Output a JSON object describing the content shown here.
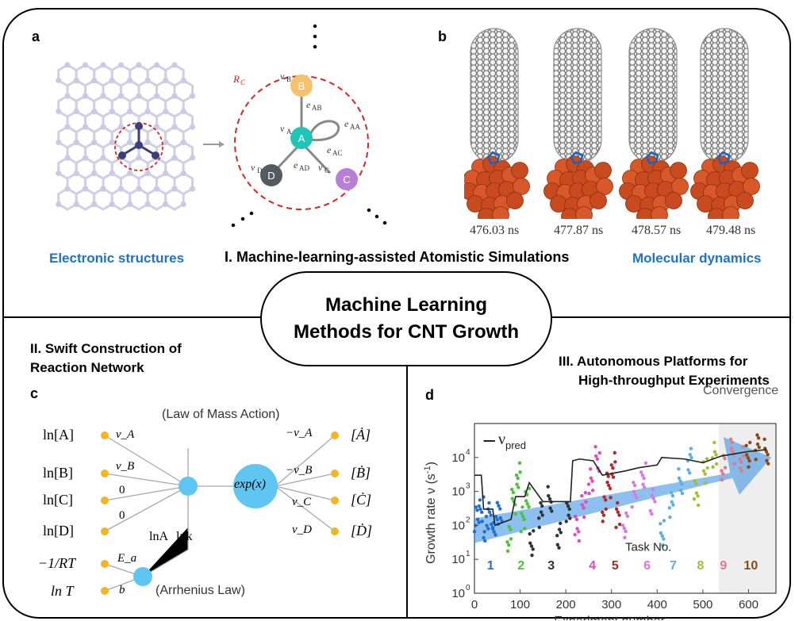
{
  "center": {
    "line1": "Machine Learning",
    "line2": "Methods for CNT Growth"
  },
  "sections": {
    "s1": "I. Machine-learning-assisted Atomistic Simulations",
    "s2_l1": "II. Swift Construction of",
    "s2_l2": "Reaction Network",
    "s3_l1": "III. Autonomous Platforms for",
    "s3_l2": "High-throughput Experiments"
  },
  "panel_a": {
    "letter": "a",
    "label": "Electronic structures",
    "rc": "R",
    "rc_sub": "C",
    "nodes": [
      {
        "id": "B",
        "v": "v",
        "sub": "B",
        "color": "#f5c26b"
      },
      {
        "id": "A",
        "v": "v",
        "sub": "A",
        "color": "#1fc6b8"
      },
      {
        "id": "C",
        "v": "v",
        "sub": "C",
        "color": "#b77fd6"
      },
      {
        "id": "D",
        "v": "v",
        "sub": "D",
        "color": "#555a60"
      }
    ],
    "edges": [
      "e_AB",
      "e_AA",
      "e_AC",
      "e_AD"
    ]
  },
  "panel_b": {
    "letter": "b",
    "label": "Molecular dynamics",
    "times": [
      "476.03 ns",
      "477.87 ns",
      "478.57 ns",
      "479.48 ns"
    ]
  },
  "panel_c": {
    "letter": "c",
    "law_mass": "(Law of Mass Action)",
    "law_arr": "(Arrhenius Law)",
    "inputs": [
      "ln[A]",
      "ln[B]",
      "ln[C]",
      "ln[D]"
    ],
    "weights": [
      "v_A",
      "v_B",
      "0",
      "0"
    ],
    "lnA": "lnA",
    "lnk": "lnk",
    "exp": "exp(x)",
    "out_w": [
      "−v_A",
      "−v_B",
      "v_C",
      "v_D"
    ],
    "outputs": [
      "[Ȧ]",
      "[Ḃ]",
      "[Ċ]",
      "[Ḋ]"
    ],
    "arr_inputs": [
      "−1/RT",
      "ln T"
    ],
    "arr_weights": [
      "E_a",
      "b"
    ]
  },
  "panel_d": {
    "letter": "d",
    "convergence": "Convergence",
    "legend": "ν",
    "legend_sub": "pred",
    "task_no": "Task No.",
    "ylabel": "Growth rate ν (s",
    "ylabel_sup": "-1",
    "ylabel_end": ")",
    "xlabel": "Experiment number",
    "xticks": [
      "0",
      "100",
      "200",
      "300",
      "400",
      "500",
      "600"
    ],
    "yticks": [
      "10",
      "10",
      "10",
      "10",
      "10"
    ],
    "ytick_exp": [
      "0",
      "1",
      "2",
      "3",
      "4"
    ],
    "tasks": [
      {
        "n": "1",
        "color": "#1f6fd0"
      },
      {
        "n": "2",
        "color": "#4cc23a"
      },
      {
        "n": "3",
        "color": "#333333"
      },
      {
        "n": "4",
        "color": "#e04ac0"
      },
      {
        "n": "5",
        "color": "#b02a2a"
      },
      {
        "n": "6",
        "color": "#d978e0"
      },
      {
        "n": "7",
        "color": "#5ab0e0"
      },
      {
        "n": "8",
        "color": "#a0c030"
      },
      {
        "n": "9",
        "color": "#e07a8a"
      },
      {
        "n": "10",
        "color": "#8b4a10"
      }
    ]
  },
  "chart_data": {
    "type": "scatter",
    "title": "",
    "xlabel": "Experiment number",
    "ylabel": "Growth rate ν (s-1)",
    "xlim": [
      0,
      660
    ],
    "ylim": [
      1,
      100000
    ],
    "yscale": "log",
    "series": [
      {
        "name": "1",
        "x": [
          5,
          15,
          25,
          35,
          45,
          55
        ],
        "y": [
          150,
          300,
          80,
          200,
          120,
          250
        ]
      },
      {
        "name": "2",
        "x": [
          75,
          85,
          95,
          105,
          115
        ],
        "y": [
          40,
          500,
          3000,
          150,
          800
        ]
      },
      {
        "name": "3",
        "x": [
          125,
          145,
          165,
          185,
          205
        ],
        "y": [
          30,
          200,
          600,
          50,
          300
        ]
      },
      {
        "name": "4",
        "x": [
          225,
          240,
          255,
          270
        ],
        "y": [
          80,
          400,
          2000,
          9000
        ]
      },
      {
        "name": "5",
        "x": [
          285,
          295,
          305,
          315
        ],
        "y": [
          300,
          1500,
          6000,
          200
        ]
      },
      {
        "name": "6",
        "x": [
          330,
          350,
          370,
          390
        ],
        "y": [
          100,
          800,
          3000,
          500
        ]
      },
      {
        "name": "7",
        "x": [
          410,
          430,
          450,
          470
        ],
        "y": [
          60,
          400,
          2000,
          8000
        ]
      },
      {
        "name": "8",
        "x": [
          485,
          505,
          525
        ],
        "y": [
          900,
          4000,
          12000
        ]
      },
      {
        "name": "9",
        "x": [
          545,
          565,
          585
        ],
        "y": [
          5000,
          15000,
          9000
        ]
      },
      {
        "name": "10",
        "x": [
          600,
          620,
          640
        ],
        "y": [
          12000,
          20000,
          15000
        ]
      }
    ]
  }
}
